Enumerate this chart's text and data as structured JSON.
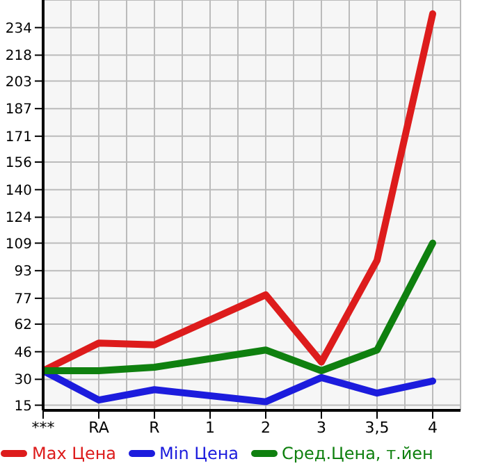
{
  "chart_data": {
    "type": "line",
    "categories": [
      "***",
      "RA",
      "R",
      "1",
      "2",
      "3",
      "3,5",
      "4"
    ],
    "series": [
      {
        "name": "Max Цена",
        "color": "#dd1c1c",
        "values": [
          35,
          51,
          50,
          null,
          79,
          40,
          99,
          242
        ]
      },
      {
        "name": "Min Цена",
        "color": "#1c1cdd",
        "values": [
          35,
          18,
          24,
          null,
          17,
          31,
          22,
          29
        ]
      },
      {
        "name": "Сред.Цена, т.йен",
        "color": "#0f800f",
        "values": [
          35,
          35,
          37,
          null,
          47,
          35,
          47,
          109
        ]
      }
    ],
    "ylim": [
      12,
      250
    ],
    "yticks": [
      15,
      30,
      46,
      62,
      77,
      93,
      109,
      124,
      140,
      156,
      171,
      187,
      203,
      218,
      234
    ],
    "grid": true,
    "legend": "bottom",
    "marker": "none",
    "line_style": "solid"
  }
}
